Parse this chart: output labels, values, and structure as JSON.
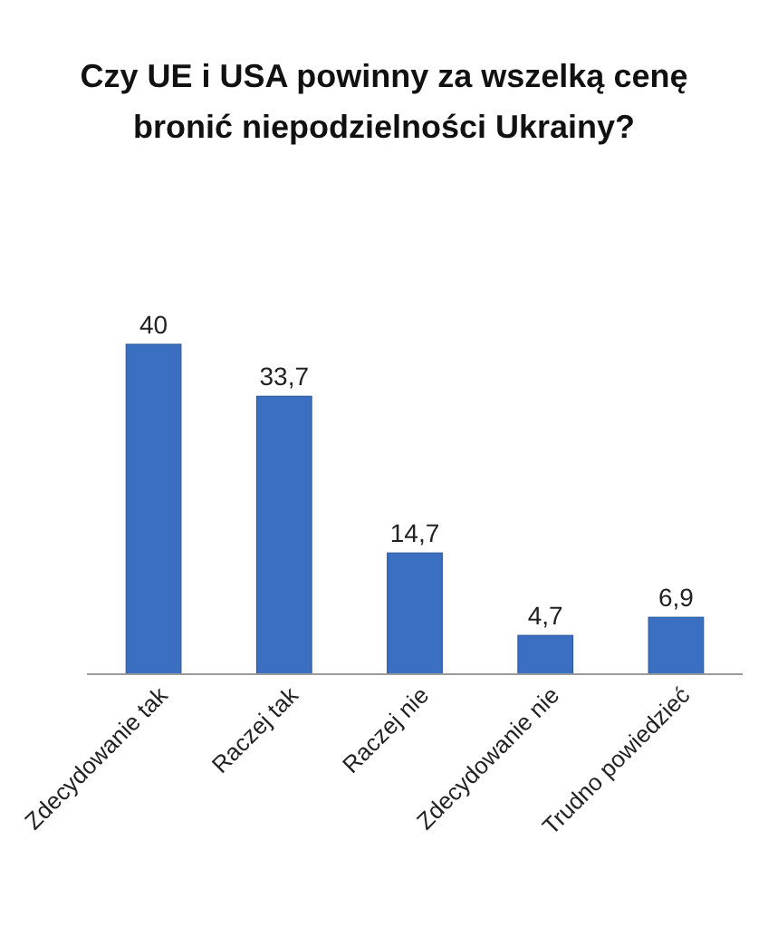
{
  "chart_data": {
    "type": "bar",
    "title": "Czy UE i USA powinny za wszelką cenę bronić niepodzielności Ukrainy?",
    "categories": [
      "Zdecydowanie tak",
      "Raczej tak",
      "Raczej nie",
      "Zdecydowanie nie",
      "Trudno powiedzieć"
    ],
    "values": [
      40,
      33.7,
      14.7,
      4.7,
      6.9
    ],
    "value_labels": [
      "40",
      "33,7",
      "14,7",
      "4,7",
      "6,9"
    ],
    "color": "#3b6fc2",
    "ylim": [
      0,
      40
    ],
    "tick_labels": "x"
  }
}
